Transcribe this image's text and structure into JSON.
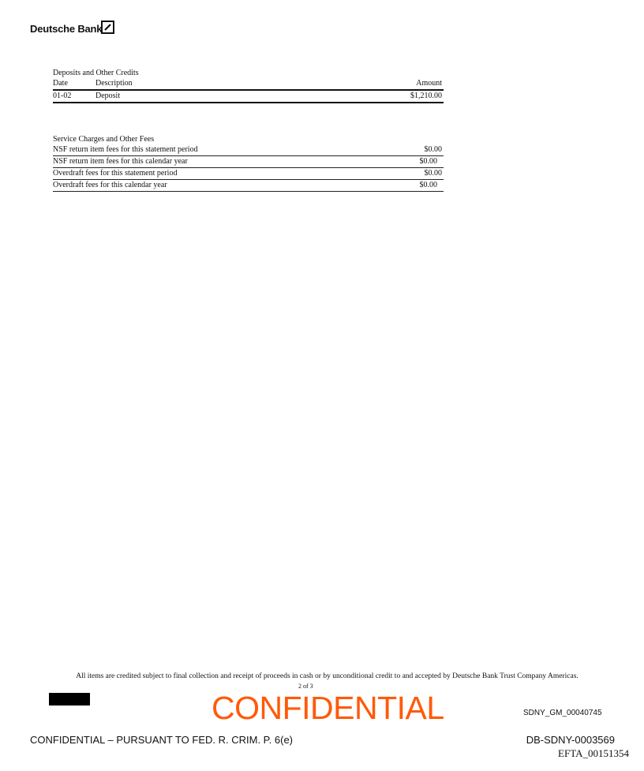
{
  "header": {
    "logo_text": "Deutsche Bank",
    "logo_icon": "deutsche-bank-slash-box-icon"
  },
  "deposits": {
    "title": "Deposits and Other Credits",
    "columns": [
      "Date",
      "Description",
      "Amount"
    ],
    "rows": [
      {
        "date": "01-02",
        "description": "Deposit",
        "amount": "$1,210.00"
      }
    ]
  },
  "fees": {
    "title": "Service Charges and Other Fees",
    "rows": [
      {
        "label": "NSF return item fees for this statement period",
        "amount": "$0.00"
      },
      {
        "label": "NSF return item fees for this calendar year",
        "amount": "$0.00"
      },
      {
        "label": "Overdraft fees for this statement period",
        "amount": "$0.00"
      },
      {
        "label": "Overdraft fees for this calendar year",
        "amount": "$0.00"
      }
    ]
  },
  "footer": {
    "note": "All items are credited subject to final collection and receipt of proceeds in cash or by unconditional credit to and accepted by Deutsche Bank Trust Company Americas.",
    "page": "2 of 3",
    "confidential_stamp": "CONFIDENTIAL",
    "stamp_color": "#ff5a0a",
    "bates_sdny_gm": "SDNY_GM_00040745",
    "confidential_notice": "CONFIDENTIAL – PURSUANT TO FED. R. CRIM. P. 6(e)",
    "bates_db": "DB-SDNY-0003569",
    "efta": "EFTA_00151354"
  }
}
